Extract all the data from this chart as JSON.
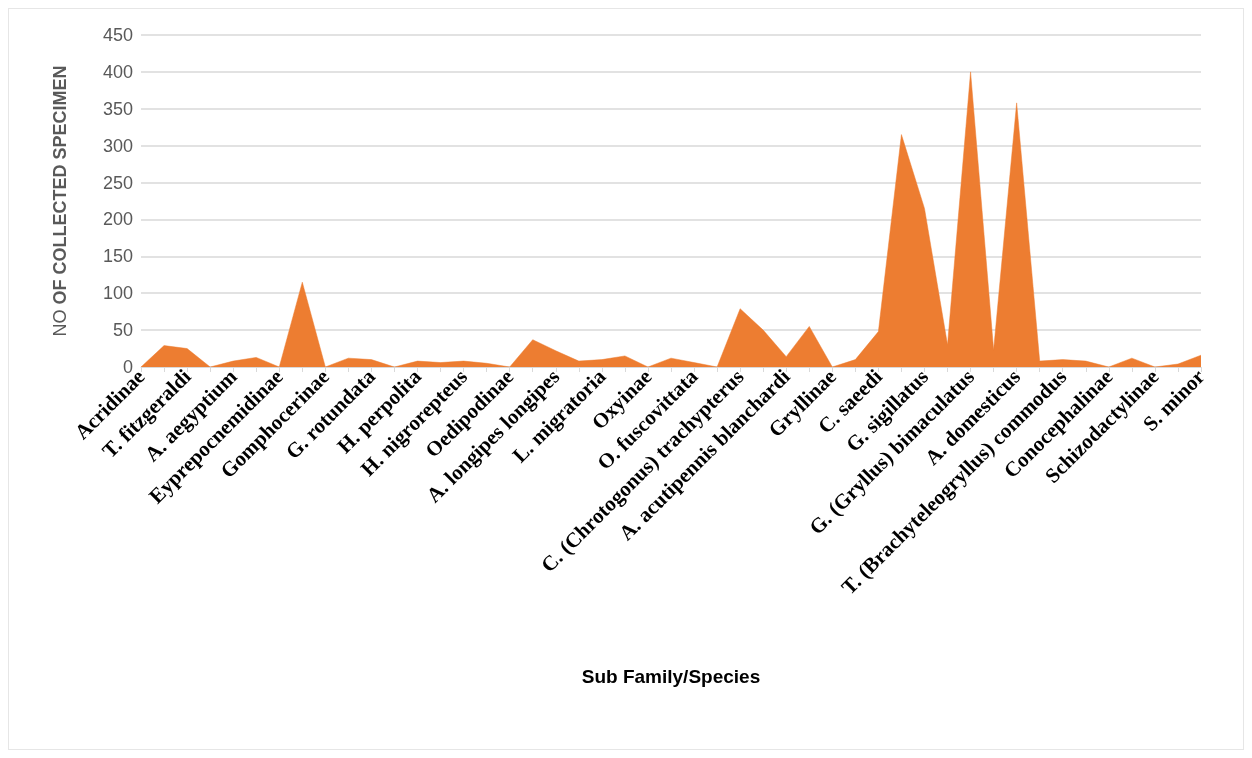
{
  "chart_data": {
    "type": "area",
    "xlabel": "Sub Family/Species",
    "ylabel": "NO OF COLLECTED SPECIMEN",
    "categories": [
      "Acridinae",
      null,
      "T. fitzgeraldi",
      null,
      "A. aegyptium",
      null,
      "Eyprepocnemidinae",
      null,
      "Gomphocerinae",
      null,
      "G. rotundata",
      null,
      "H. perpolita",
      null,
      "H. nigrorepteus",
      null,
      "Oedipodinae",
      null,
      "A. longipes longipes",
      null,
      "L. migratoria",
      null,
      "Oxyinae",
      null,
      "O. fuscovittata",
      null,
      "C. (Chrotogonus) trachypterus",
      null,
      "A. acutipennis blanchardi",
      null,
      "Gryllinae",
      null,
      "C. saeedi",
      null,
      "G. sigillatus",
      null,
      "G. (Gryllus) bimaculatus",
      null,
      "A. domesticus",
      null,
      "T. (Brachyteleogryllus) commodus",
      null,
      "Conocephalinae",
      null,
      "Schizodactylinae",
      null,
      "S. minor"
    ],
    "values": [
      0,
      29,
      25,
      0,
      8,
      13,
      0,
      115,
      0,
      12,
      10,
      0,
      8,
      6,
      8,
      5,
      0,
      37,
      22,
      8,
      10,
      15,
      0,
      12,
      6,
      0,
      79,
      50,
      14,
      55,
      0,
      10,
      48,
      315,
      215,
      30,
      400,
      23,
      358,
      8,
      10,
      8,
      0,
      12,
      0,
      4,
      16
    ],
    "color": "#ed7d31",
    "ylim": [
      0,
      450
    ],
    "yticks": [
      0,
      50,
      100,
      150,
      200,
      250,
      300,
      350,
      400,
      450
    ],
    "grid": "y"
  }
}
